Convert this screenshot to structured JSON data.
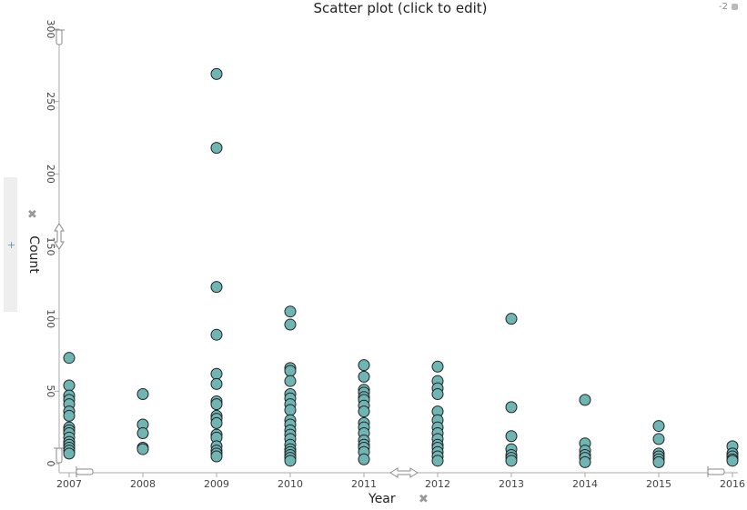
{
  "title": "Scatter plot (click to edit)",
  "corner_text": "-2",
  "close_glyph": "✖",
  "add_glyph": "+",
  "colors": {
    "point": "#6fb5b3",
    "stroke": "#222222",
    "axis": "#aaaaaa"
  },
  "chart_data": {
    "type": "scatter",
    "title": "Scatter plot (click to edit)",
    "xlabel": "Year",
    "ylabel": "Count",
    "xlim": [
      2007,
      2016
    ],
    "ylim": [
      0,
      300
    ],
    "x_ticks": [
      2007,
      2008,
      2009,
      2010,
      2011,
      2012,
      2013,
      2014,
      2015,
      2016
    ],
    "y_ticks": [
      0,
      50,
      100,
      150,
      200,
      250,
      300
    ],
    "grid": false,
    "points": [
      [
        2007,
        73
      ],
      [
        2007,
        54
      ],
      [
        2007,
        47
      ],
      [
        2007,
        44
      ],
      [
        2007,
        41
      ],
      [
        2007,
        36
      ],
      [
        2007,
        33
      ],
      [
        2007,
        25
      ],
      [
        2007,
        23
      ],
      [
        2007,
        21
      ],
      [
        2007,
        18
      ],
      [
        2007,
        15
      ],
      [
        2007,
        13
      ],
      [
        2007,
        11
      ],
      [
        2007,
        9
      ],
      [
        2007,
        7
      ],
      [
        2008,
        48
      ],
      [
        2008,
        27
      ],
      [
        2008,
        21
      ],
      [
        2008,
        11
      ],
      [
        2008,
        10
      ],
      [
        2009,
        269
      ],
      [
        2009,
        218
      ],
      [
        2009,
        122
      ],
      [
        2009,
        89
      ],
      [
        2009,
        62
      ],
      [
        2009,
        55
      ],
      [
        2009,
        43
      ],
      [
        2009,
        41
      ],
      [
        2009,
        33
      ],
      [
        2009,
        31
      ],
      [
        2009,
        28
      ],
      [
        2009,
        20
      ],
      [
        2009,
        18
      ],
      [
        2009,
        12
      ],
      [
        2009,
        9
      ],
      [
        2009,
        7
      ],
      [
        2009,
        5
      ],
      [
        2010,
        105
      ],
      [
        2010,
        96
      ],
      [
        2010,
        66
      ],
      [
        2010,
        64
      ],
      [
        2010,
        57
      ],
      [
        2010,
        48
      ],
      [
        2010,
        45
      ],
      [
        2010,
        41
      ],
      [
        2010,
        37
      ],
      [
        2010,
        30
      ],
      [
        2010,
        27
      ],
      [
        2010,
        23
      ],
      [
        2010,
        20
      ],
      [
        2010,
        17
      ],
      [
        2010,
        13
      ],
      [
        2010,
        10
      ],
      [
        2010,
        8
      ],
      [
        2010,
        6
      ],
      [
        2010,
        4
      ],
      [
        2010,
        2
      ],
      [
        2011,
        68
      ],
      [
        2011,
        60
      ],
      [
        2011,
        51
      ],
      [
        2011,
        49
      ],
      [
        2011,
        46
      ],
      [
        2011,
        44
      ],
      [
        2011,
        40
      ],
      [
        2011,
        36
      ],
      [
        2011,
        28
      ],
      [
        2011,
        25
      ],
      [
        2011,
        21
      ],
      [
        2011,
        16
      ],
      [
        2011,
        13
      ],
      [
        2011,
        11
      ],
      [
        2011,
        8
      ],
      [
        2011,
        3
      ],
      [
        2012,
        67
      ],
      [
        2012,
        57
      ],
      [
        2012,
        52
      ],
      [
        2012,
        48
      ],
      [
        2012,
        36
      ],
      [
        2012,
        30
      ],
      [
        2012,
        25
      ],
      [
        2012,
        21
      ],
      [
        2012,
        17
      ],
      [
        2012,
        13
      ],
      [
        2012,
        11
      ],
      [
        2012,
        8
      ],
      [
        2012,
        5
      ],
      [
        2012,
        2
      ],
      [
        2013,
        100
      ],
      [
        2013,
        39
      ],
      [
        2013,
        19
      ],
      [
        2013,
        10
      ],
      [
        2013,
        6
      ],
      [
        2013,
        4
      ],
      [
        2013,
        2
      ],
      [
        2014,
        44
      ],
      [
        2014,
        14
      ],
      [
        2014,
        9
      ],
      [
        2014,
        6
      ],
      [
        2014,
        4
      ],
      [
        2014,
        1
      ],
      [
        2015,
        26
      ],
      [
        2015,
        17
      ],
      [
        2015,
        7
      ],
      [
        2015,
        5
      ],
      [
        2015,
        3
      ],
      [
        2015,
        1
      ],
      [
        2016,
        12
      ],
      [
        2016,
        7
      ],
      [
        2016,
        5
      ],
      [
        2016,
        3
      ],
      [
        2016,
        2
      ]
    ]
  }
}
